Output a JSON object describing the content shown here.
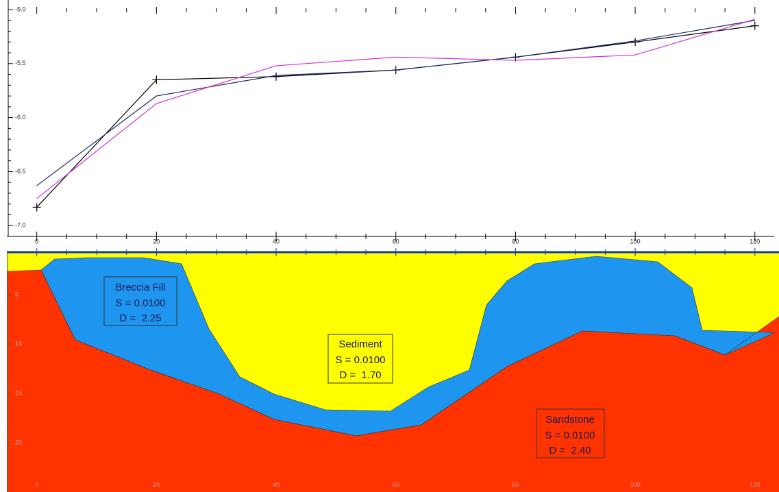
{
  "chart_data": [
    {
      "type": "line",
      "x": [
        0,
        20,
        40,
        60,
        80,
        100,
        120
      ],
      "xlim": [
        -5,
        123
      ],
      "xticks": [
        0,
        20,
        40,
        60,
        80,
        100,
        120
      ],
      "ylim": [
        -7.1,
        -5.0
      ],
      "yticks": [
        {
          "value": -5.0,
          "label": "-5.0"
        },
        -5.5,
        {
          "value": -6.0,
          "label": "-6.0"
        },
        -6.5,
        {
          "value": -7.0,
          "label": "-7.0"
        }
      ],
      "series": [
        {
          "color": "#000000",
          "marker": "plus",
          "values": [
            -6.83,
            -5.65,
            -5.62,
            -5.56,
            -5.44,
            -5.3,
            -5.15
          ]
        },
        {
          "color": "#1a2a6a",
          "values": [
            -6.63,
            -5.8,
            -5.61,
            -5.56,
            -5.44,
            -5.29,
            -5.1
          ]
        },
        {
          "color": "#d030d0",
          "values": [
            -6.75,
            -5.87,
            -5.52,
            -5.44,
            -5.47,
            -5.42,
            -5.09
          ]
        }
      ]
    },
    {
      "type": "section",
      "xlim": [
        -5,
        123
      ],
      "xticks": [
        0,
        20,
        40,
        60,
        80,
        100,
        120
      ],
      "ylim": [
        0,
        25
      ],
      "yticks": [
        5,
        10,
        15,
        20
      ],
      "bodies": [
        {
          "name": "Breccia Fill",
          "density_lines": [
            "S = 0.0100",
            "D =  2.25"
          ],
          "color": "#1e96f0"
        },
        {
          "name": "Sediment",
          "density_lines": [
            "S = 0.0100",
            "D =  1.70"
          ],
          "color": "#ffff00"
        },
        {
          "name": "Sandstone",
          "density_lines": [
            "S = 0.0100",
            "D =  2.40"
          ],
          "color": "#ff3300"
        }
      ]
    }
  ]
}
